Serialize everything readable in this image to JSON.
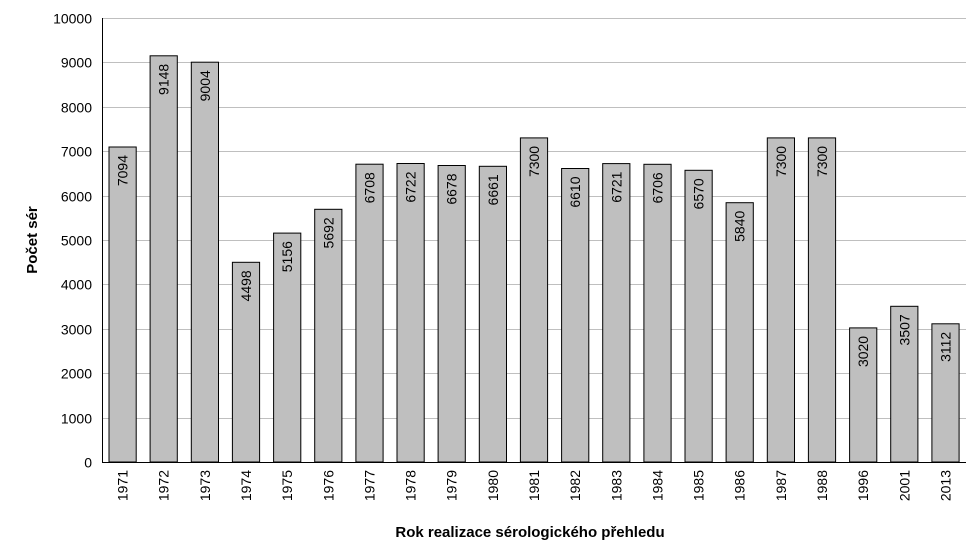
{
  "chart_data": {
    "type": "bar",
    "title": "",
    "xlabel": "Rok realizace sérologického přehledu",
    "ylabel": "Počet sér",
    "categories": [
      "1971",
      "1972",
      "1973",
      "1974",
      "1975",
      "1976",
      "1977",
      "1978",
      "1979",
      "1980",
      "1981",
      "1982",
      "1983",
      "1984",
      "1985",
      "1986",
      "1987",
      "1988",
      "1996",
      "2001",
      "2013"
    ],
    "values": [
      7094,
      9148,
      9004,
      4498,
      5156,
      5692,
      6708,
      6722,
      6678,
      6661,
      7300,
      6610,
      6721,
      6706,
      6570,
      5840,
      7300,
      7300,
      3020,
      3507,
      3112
    ],
    "data_labels": [
      "7094",
      "9148",
      "9004",
      "4498",
      "5156",
      "5692",
      "6708",
      "6722",
      "6678",
      "6661",
      "7300",
      "6610",
      "6721",
      "6706",
      "6570",
      "5840",
      "7300",
      "7300",
      "3020",
      "3507",
      "3112"
    ],
    "ylim": [
      0,
      10000
    ],
    "yticks": [
      "0",
      "1000",
      "2000",
      "3000",
      "4000",
      "5000",
      "6000",
      "7000",
      "8000",
      "9000",
      "10000"
    ],
    "ytick_values": [
      0,
      1000,
      2000,
      3000,
      4000,
      5000,
      6000,
      7000,
      8000,
      9000,
      10000
    ],
    "grid": true,
    "legend": "none",
    "colors": {
      "bar_fill": "#bfbfbf",
      "bar_stroke": "#000000",
      "grid": "#bfbfbf",
      "axis": "#000000"
    }
  }
}
